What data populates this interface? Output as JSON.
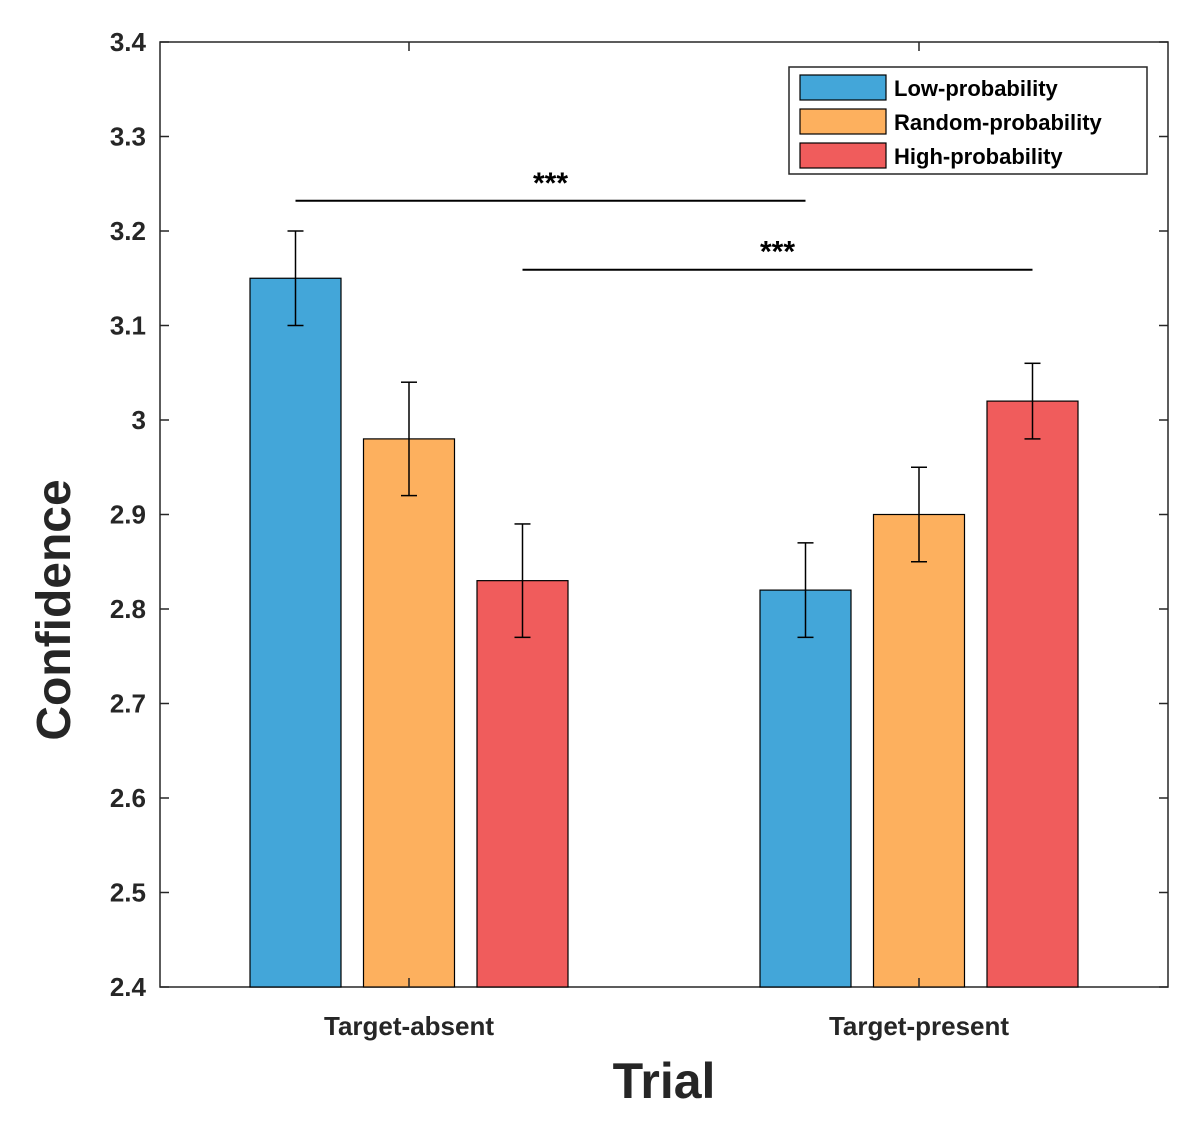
{
  "chart_data": {
    "type": "bar",
    "title": "",
    "xlabel": "Trial",
    "ylabel": "Confidence",
    "ylim": [
      2.4,
      3.4
    ],
    "yticks": [
      2.4,
      2.5,
      2.6,
      2.7,
      2.8,
      2.9,
      3.0,
      3.1,
      3.2,
      3.3,
      3.4
    ],
    "ytick_labels": [
      "2.4",
      "2.5",
      "2.6",
      "2.7",
      "2.8",
      "2.9",
      "3",
      "3.1",
      "3.2",
      "3.3",
      "3.4"
    ],
    "categories": [
      "Target-absent",
      "Target-present"
    ],
    "series": [
      {
        "name": "Low-probability",
        "color": "#43a6d9",
        "values": [
          3.15,
          2.82
        ],
        "errors": [
          0.05,
          0.05
        ]
      },
      {
        "name": "Random-probability",
        "color": "#fdb05e",
        "values": [
          2.98,
          2.9
        ],
        "errors": [
          0.06,
          0.05
        ]
      },
      {
        "name": "High-probability",
        "color": "#f05c5c",
        "values": [
          2.83,
          3.02
        ],
        "errors": [
          0.06,
          0.04
        ]
      }
    ],
    "legend_position": "top-right",
    "significance": [
      {
        "label": "***",
        "from": {
          "category": 0,
          "series": 0
        },
        "to": {
          "category": 1,
          "series": 0
        },
        "y": 3.232
      },
      {
        "label": "***",
        "from": {
          "category": 0,
          "series": 2
        },
        "to": {
          "category": 1,
          "series": 2
        },
        "y": 3.159
      }
    ]
  }
}
